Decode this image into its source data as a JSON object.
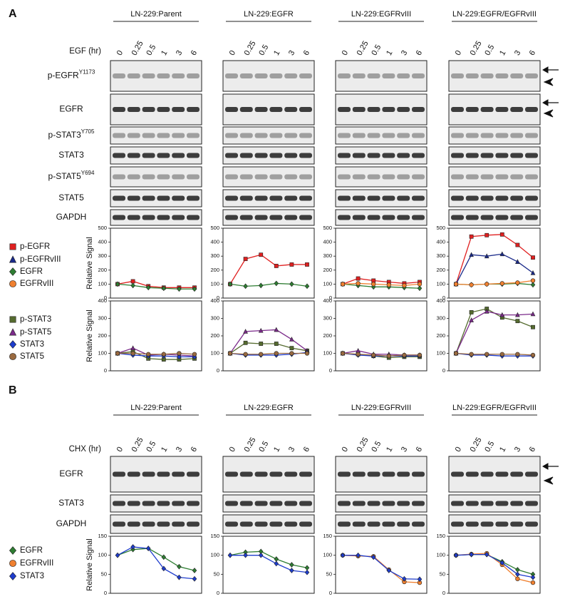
{
  "panels": [
    {
      "label": "A",
      "treatment": "EGF (hr)",
      "cell_lines": [
        "LN-229:Parent",
        "LN-229:EGFR",
        "LN-229:EGFRvIII",
        "LN-229:EGFR/EGFRvIII"
      ],
      "times": [
        "0",
        "0.25",
        "0.5",
        "1",
        "3",
        "6"
      ],
      "blots": [
        {
          "name": "p-EGFR",
          "sup": "Y1173"
        },
        {
          "name": "EGFR"
        },
        {
          "name": "p-STAT3",
          "sup": "Y705"
        },
        {
          "name": "STAT3"
        },
        {
          "name": "p-STAT5",
          "sup": "Y694"
        },
        {
          "name": "STAT5"
        },
        {
          "name": "GAPDH"
        }
      ],
      "charts": [
        {
          "type": "line",
          "ylabel": "Relative Signal",
          "ylim": [
            0,
            500
          ],
          "yticks": [
            0,
            100,
            200,
            300,
            400,
            500
          ],
          "legend": [
            {
              "name": "p-EGFR",
              "color": "#e02020",
              "marker": "square"
            },
            {
              "name": "p-EGFRvIII",
              "color": "#1a2a8a",
              "marker": "triangle"
            },
            {
              "name": "EGFR",
              "color": "#2e7d32",
              "marker": "diamond"
            },
            {
              "name": "EGFRvIII",
              "color": "#f08030",
              "marker": "circle"
            }
          ],
          "plots": [
            {
              "series": [
                [
                  100,
                  120,
                  85,
                  75,
                  75,
                  75
                ],
                null,
                [
                  100,
                  90,
                  75,
                  70,
                  65,
                  65
                ],
                null
              ]
            },
            {
              "series": [
                [
                  100,
                  280,
                  310,
                  230,
                  240,
                  240
                ],
                null,
                [
                  100,
                  85,
                  90,
                  105,
                  100,
                  85
                ],
                null
              ]
            },
            {
              "series": [
                [
                  100,
                  140,
                  125,
                  115,
                  105,
                  115
                ],
                null,
                [
                  100,
                  90,
                  80,
                  80,
                  75,
                  70
                ],
                [
                  100,
                  105,
                  100,
                  95,
                  90,
                  100
                ]
              ]
            },
            {
              "series": [
                [
                  100,
                  440,
                  450,
                  455,
                  380,
                  290
                ],
                [
                  100,
                  310,
                  300,
                  315,
                  260,
                  180
                ],
                [
                  100,
                  95,
                  100,
                  100,
                  105,
                  95
                ],
                [
                  100,
                  95,
                  100,
                  105,
                  110,
                  125
                ]
              ]
            }
          ]
        },
        {
          "type": "line",
          "ylabel": "Relative Signal",
          "ylim": [
            0,
            400
          ],
          "yticks": [
            0,
            100,
            200,
            300,
            400
          ],
          "legend": [
            {
              "name": "p-STAT3",
              "color": "#556b2f",
              "marker": "square"
            },
            {
              "name": "p-STAT5",
              "color": "#7b2a8a",
              "marker": "triangle"
            },
            {
              "name": "STAT3",
              "color": "#1e3ccc",
              "marker": "diamond"
            },
            {
              "name": "STAT5",
              "color": "#9a6a40",
              "marker": "circle"
            }
          ],
          "plots": [
            {
              "series": [
                [
                  100,
                  110,
                  70,
                  65,
                  65,
                  70
                ],
                [
                  100,
                  130,
                  90,
                  95,
                  90,
                  85
                ],
                [
                  100,
                  90,
                  85,
                  85,
                  80,
                  80
                ],
                [
                  100,
                  100,
                  95,
                  95,
                  100,
                  95
                ]
              ]
            },
            {
              "series": [
                [
                  100,
                  160,
                  155,
                  155,
                  130,
                  115
                ],
                [
                  100,
                  225,
                  230,
                  235,
                  180,
                  115
                ],
                [
                  100,
                  90,
                  90,
                  90,
                  95,
                  105
                ],
                [
                  100,
                  95,
                  95,
                  100,
                  100,
                  100
                ]
              ]
            },
            {
              "series": [
                [
                  100,
                  95,
                  85,
                  75,
                  80,
                  80
                ],
                [
                  100,
                  115,
                  95,
                  95,
                  90,
                  90
                ],
                [
                  100,
                  90,
                  85,
                  85,
                  85,
                  85
                ],
                [
                  100,
                  95,
                  90,
                  85,
                  90,
                  90
                ]
              ]
            },
            {
              "series": [
                [
                  100,
                  335,
                  355,
                  305,
                  285,
                  250
                ],
                [
                  100,
                  290,
                  340,
                  320,
                  320,
                  325
                ],
                [
                  100,
                  90,
                  90,
                  85,
                  85,
                  85
                ],
                [
                  100,
                  95,
                  95,
                  95,
                  95,
                  90
                ]
              ]
            }
          ]
        }
      ]
    },
    {
      "label": "B",
      "treatment": "CHX (hr)",
      "cell_lines": [
        "LN-229:Parent",
        "LN-229:EGFR",
        "LN-229:EGFRvIII",
        "LN-229:EGFR/EGFRvIII"
      ],
      "times": [
        "0",
        "0.25",
        "0.5",
        "1",
        "3",
        "6"
      ],
      "blots": [
        {
          "name": "EGFR"
        },
        {
          "name": "STAT3"
        },
        {
          "name": "GAPDH"
        }
      ],
      "charts": [
        {
          "type": "line",
          "ylabel": "Relative Signal",
          "ylim": [
            0,
            150
          ],
          "yticks": [
            0,
            50,
            100,
            150
          ],
          "legend": [
            {
              "name": "EGFR",
              "color": "#2e7d32",
              "marker": "diamond"
            },
            {
              "name": "EGFRvIII",
              "color": "#f08030",
              "marker": "circle"
            },
            {
              "name": "STAT3",
              "color": "#1e3ccc",
              "marker": "diamond"
            }
          ],
          "plots": [
            {
              "series": [
                [
                  100,
                  115,
                  118,
                  95,
                  70,
                  60
                ],
                null,
                [
                  100,
                  122,
                  118,
                  65,
                  42,
                  38
                ]
              ]
            },
            {
              "series": [
                [
                  100,
                  108,
                  110,
                  90,
                  75,
                  67
                ],
                null,
                [
                  100,
                  100,
                  100,
                  78,
                  60,
                  55
                ]
              ]
            },
            {
              "series": [
                null,
                [
                  100,
                  98,
                  97,
                  62,
                  30,
                  28
                ],
                [
                  100,
                  100,
                  95,
                  60,
                  38,
                  37
                ]
              ]
            },
            {
              "series": [
                [
                  100,
                  102,
                  102,
                  83,
                  62,
                  50
                ],
                [
                  100,
                  103,
                  105,
                  75,
                  38,
                  28
                ],
                [
                  100,
                  102,
                  102,
                  80,
                  50,
                  42
                ]
              ]
            }
          ]
        }
      ]
    }
  ]
}
